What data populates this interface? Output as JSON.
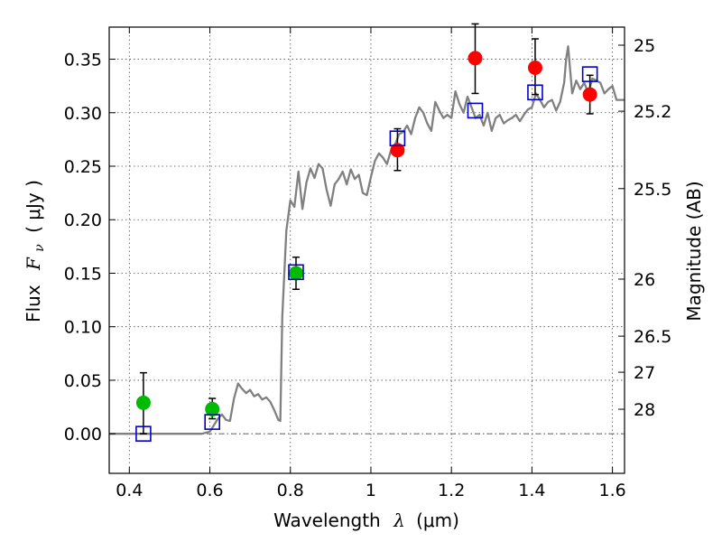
{
  "chart_data": {
    "type": "scatter",
    "xlabel": "Wavelength",
    "xlabel_symbol": "λ",
    "xlabel_unit": "(μm)",
    "ylabel": "Flux",
    "ylabel_symbol": "F",
    "ylabel_subscript": "ν",
    "ylabel_unit": "( μJy )",
    "y2label": "Magnitude (AB)",
    "xlim": [
      0.35,
      1.63
    ],
    "ylim": [
      -0.037,
      0.38
    ],
    "grid": true,
    "x_ticks": [
      {
        "value": 0.4,
        "label": "0.4"
      },
      {
        "value": 0.6,
        "label": "0.6"
      },
      {
        "value": 0.8,
        "label": "0.8"
      },
      {
        "value": 1.0,
        "label": "1"
      },
      {
        "value": 1.2,
        "label": "1.2"
      },
      {
        "value": 1.4,
        "label": "1.4"
      },
      {
        "value": 1.6,
        "label": "1.6"
      }
    ],
    "y_ticks": [
      {
        "value": 0.0,
        "label": "0.00"
      },
      {
        "value": 0.05,
        "label": "0.05"
      },
      {
        "value": 0.1,
        "label": "0.10"
      },
      {
        "value": 0.15,
        "label": "0.15"
      },
      {
        "value": 0.2,
        "label": "0.20"
      },
      {
        "value": 0.25,
        "label": "0.25"
      },
      {
        "value": 0.3,
        "label": "0.30"
      },
      {
        "value": 0.35,
        "label": "0.35"
      }
    ],
    "magnitude_ticks": [
      {
        "flux": 0.3631,
        "label": "25"
      },
      {
        "flux": 0.3014,
        "label": "25.2"
      },
      {
        "flux": 0.2291,
        "label": "25.5"
      },
      {
        "flux": 0.1445,
        "label": "26"
      },
      {
        "flux": 0.0912,
        "label": "26.5"
      },
      {
        "flux": 0.0575,
        "label": "27"
      },
      {
        "flux": 0.0229,
        "label": "28"
      }
    ],
    "series": [
      {
        "kind": "line",
        "color": "#808080",
        "x": [
          0.35,
          0.58,
          0.6,
          0.61,
          0.62,
          0.63,
          0.64,
          0.65,
          0.66,
          0.67,
          0.68,
          0.69,
          0.7,
          0.71,
          0.72,
          0.73,
          0.74,
          0.75,
          0.76,
          0.77,
          0.775,
          0.78,
          0.79,
          0.8,
          0.81,
          0.82,
          0.83,
          0.84,
          0.85,
          0.86,
          0.87,
          0.88,
          0.89,
          0.9,
          0.91,
          0.92,
          0.93,
          0.94,
          0.95,
          0.96,
          0.97,
          0.98,
          0.99,
          1.0,
          1.01,
          1.02,
          1.03,
          1.04,
          1.05,
          1.06,
          1.07,
          1.08,
          1.09,
          1.1,
          1.11,
          1.12,
          1.13,
          1.14,
          1.15,
          1.16,
          1.17,
          1.18,
          1.19,
          1.2,
          1.21,
          1.22,
          1.23,
          1.24,
          1.25,
          1.26,
          1.27,
          1.28,
          1.29,
          1.3,
          1.31,
          1.32,
          1.33,
          1.34,
          1.35,
          1.36,
          1.37,
          1.38,
          1.39,
          1.4,
          1.41,
          1.42,
          1.43,
          1.44,
          1.45,
          1.46,
          1.47,
          1.48,
          1.485,
          1.49,
          1.5,
          1.51,
          1.52,
          1.53,
          1.54,
          1.55,
          1.56,
          1.57,
          1.58,
          1.59,
          1.6,
          1.61,
          1.62,
          1.63
        ],
        "y": [
          0.0,
          0.0,
          0.002,
          0.008,
          0.014,
          0.018,
          0.013,
          0.012,
          0.033,
          0.047,
          0.042,
          0.038,
          0.041,
          0.035,
          0.037,
          0.032,
          0.034,
          0.03,
          0.022,
          0.013,
          0.012,
          0.11,
          0.19,
          0.218,
          0.212,
          0.245,
          0.21,
          0.235,
          0.248,
          0.239,
          0.252,
          0.248,
          0.228,
          0.213,
          0.233,
          0.238,
          0.245,
          0.233,
          0.247,
          0.238,
          0.242,
          0.225,
          0.223,
          0.24,
          0.255,
          0.262,
          0.258,
          0.252,
          0.265,
          0.27,
          0.28,
          0.282,
          0.288,
          0.28,
          0.295,
          0.305,
          0.3,
          0.29,
          0.283,
          0.31,
          0.302,
          0.295,
          0.298,
          0.295,
          0.32,
          0.308,
          0.3,
          0.315,
          0.305,
          0.295,
          0.298,
          0.288,
          0.3,
          0.283,
          0.295,
          0.298,
          0.29,
          0.293,
          0.295,
          0.298,
          0.292,
          0.298,
          0.303,
          0.305,
          0.318,
          0.312,
          0.305,
          0.31,
          0.312,
          0.302,
          0.31,
          0.328,
          0.35,
          0.362,
          0.318,
          0.33,
          0.322,
          0.328,
          0.318,
          0.332,
          0.33,
          0.328,
          0.318,
          0.322,
          0.325,
          0.312,
          0.312,
          0.312
        ]
      },
      {
        "kind": "points",
        "marker": "circle",
        "color": "#00bb00",
        "points": [
          {
            "x": 0.435,
            "y": 0.029,
            "err_lo": 0.029,
            "err_hi": 0.028
          },
          {
            "x": 0.606,
            "y": 0.023,
            "err_lo": 0.009,
            "err_hi": 0.01
          },
          {
            "x": 0.814,
            "y": 0.15,
            "err_lo": 0.015,
            "err_hi": 0.015
          }
        ]
      },
      {
        "kind": "points",
        "marker": "circle",
        "color": "#ff0000",
        "points": [
          {
            "x": 1.066,
            "y": 0.265,
            "err_lo": 0.019,
            "err_hi": 0.02
          },
          {
            "x": 1.259,
            "y": 0.351,
            "err_lo": 0.033,
            "err_hi": 0.032
          },
          {
            "x": 1.408,
            "y": 0.342,
            "err_lo": 0.025,
            "err_hi": 0.027
          },
          {
            "x": 1.544,
            "y": 0.317,
            "err_lo": 0.018,
            "err_hi": 0.018
          }
        ]
      },
      {
        "kind": "points",
        "marker": "square",
        "color": "#0000cc",
        "points": [
          {
            "x": 0.435,
            "y": 0.0
          },
          {
            "x": 0.606,
            "y": 0.011
          },
          {
            "x": 0.814,
            "y": 0.151
          },
          {
            "x": 1.066,
            "y": 0.276
          },
          {
            "x": 1.259,
            "y": 0.302
          },
          {
            "x": 1.408,
            "y": 0.319
          },
          {
            "x": 1.544,
            "y": 0.336
          }
        ]
      }
    ]
  }
}
